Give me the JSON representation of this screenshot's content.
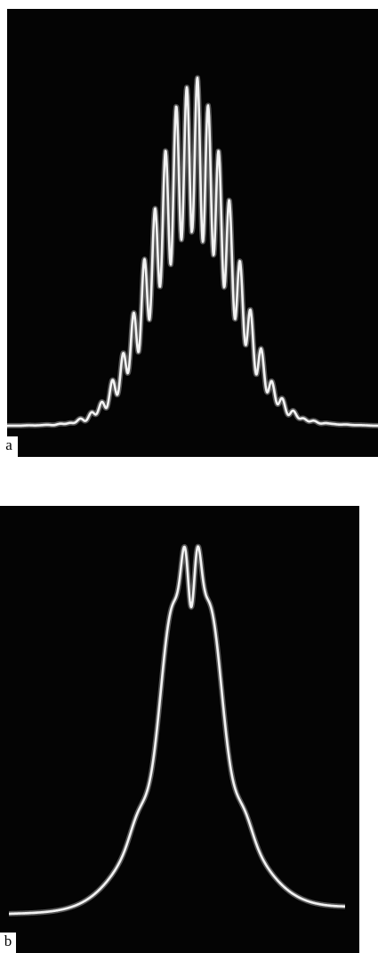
{
  "panels": [
    {
      "label": "a",
      "trace_color": "#f2f2f2",
      "background_color": "#040404"
    },
    {
      "label": "b",
      "trace_color": "#f2f2f2",
      "background_color": "#040404"
    }
  ]
}
